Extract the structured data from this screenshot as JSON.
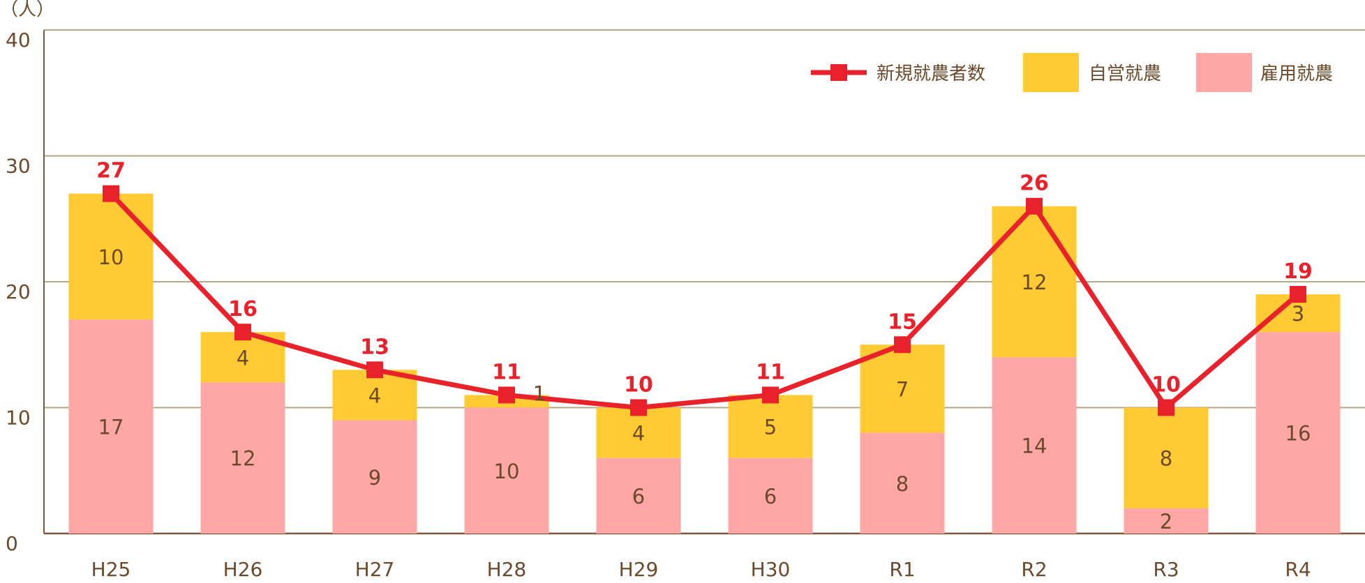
{
  "chart_data": {
    "type": "bar",
    "y_unit_label": "（人）",
    "categories": [
      "H25",
      "H26",
      "H27",
      "H28",
      "H29",
      "H30",
      "R1",
      "R2",
      "R3",
      "R4"
    ],
    "ylim": [
      0,
      40
    ],
    "yticks": [
      0,
      10,
      20,
      30,
      40
    ],
    "grid": true,
    "legend_position": "top-right",
    "stacked": true,
    "series": [
      {
        "name": "雇用就農",
        "kind": "bar",
        "color": "#FFA6A6",
        "values": [
          17,
          12,
          9,
          10,
          6,
          6,
          8,
          14,
          2,
          16
        ]
      },
      {
        "name": "自営就農",
        "kind": "bar",
        "color": "#FFCA32",
        "values": [
          10,
          4,
          4,
          1,
          4,
          5,
          7,
          12,
          8,
          3
        ]
      },
      {
        "name": "新規就農者数",
        "kind": "line",
        "color": "#E8212B",
        "values": [
          27,
          16,
          13,
          11,
          10,
          11,
          15,
          26,
          10,
          19
        ]
      }
    ],
    "legend_order": [
      "新規就農者数",
      "自営就農",
      "雇用就農"
    ],
    "colors": {
      "axis_text": "#6B4A2B",
      "grid": "#B9A684",
      "bar_label": "#6B4A2B"
    }
  }
}
